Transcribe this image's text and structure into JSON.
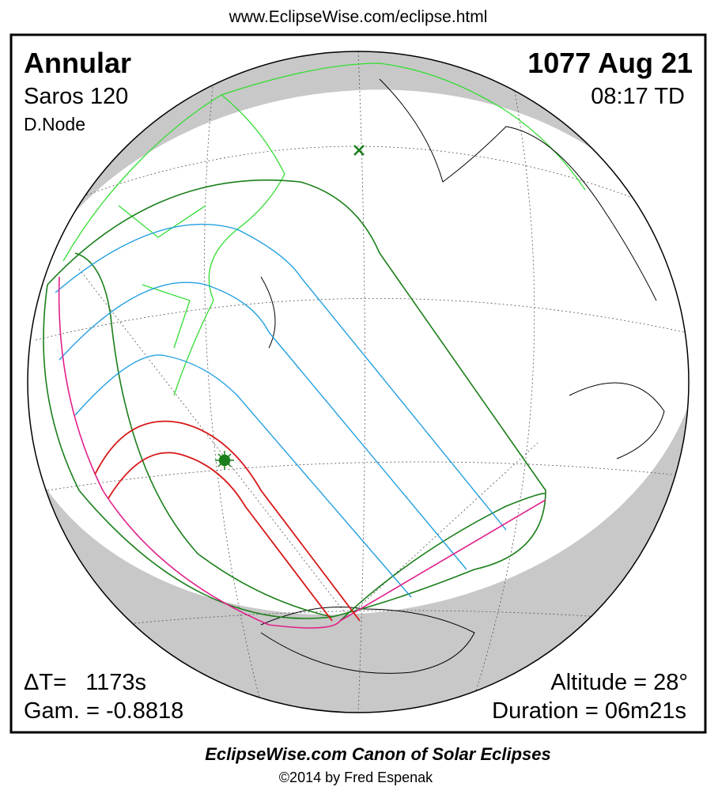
{
  "header": {
    "url": "www.EclipseWise.com/eclipse.html"
  },
  "panel": {
    "top_left": {
      "eclipse_type": "Annular",
      "saros": "Saros 120",
      "node": "D.Node"
    },
    "top_right": {
      "date": "1077 Aug 21",
      "time": "08:17 TD"
    },
    "bottom_left": {
      "delta_t": "ΔT=   1173s",
      "gamma": "Gam. = -0.8818"
    },
    "bottom_right": {
      "altitude": "Altitude = 28°",
      "duration": "Duration = 06m21s"
    }
  },
  "footer": {
    "title": "EclipseWise.com Canon of Solar Eclipses",
    "credit": "©2014 by Fred Espenak"
  }
}
